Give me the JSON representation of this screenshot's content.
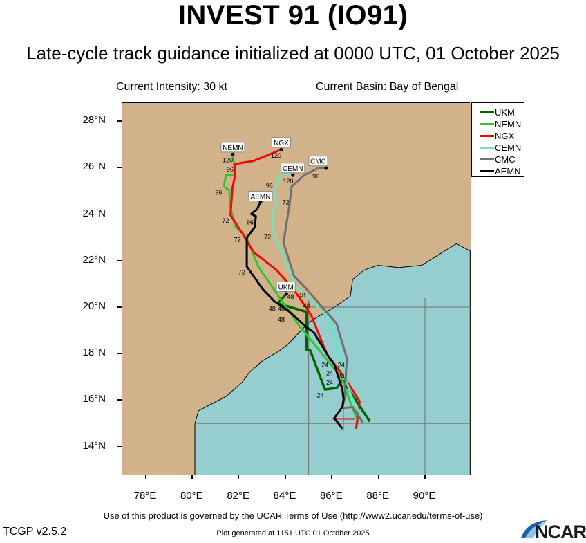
{
  "header": {
    "title": "INVEST 91 (IO91)",
    "subtitle": "Late-cycle track guidance initialized at 0000 UTC, 01 October 2025",
    "intensity": "Current Intensity: 30 kt",
    "basin": "Current Basin: Bay of Bengal"
  },
  "footer": {
    "terms": "Use of this product is governed by the UCAR Terms of Use (http://www2.ucar.edu/terms-of-use)",
    "version": "TCGP v2.5.2",
    "generated": "Plot generated at 1151 UTC   01 October 2025",
    "logo_text": "NCAR"
  },
  "colors": {
    "land": "#d1b28a",
    "ocean": "#96cdcf",
    "grid": "#6e6e6e",
    "initial_position": "#ff0000"
  },
  "chart_data": {
    "type": "map-track",
    "lon_range": [
      76.99,
      91.96
    ],
    "lat_range": [
      12.77,
      28.78
    ],
    "x_ticks": [
      {
        "v": 78,
        "label": "78°E"
      },
      {
        "v": 80,
        "label": "80°E"
      },
      {
        "v": 82,
        "label": "82°E"
      },
      {
        "v": 84,
        "label": "84°E"
      },
      {
        "v": 86,
        "label": "86°E"
      },
      {
        "v": 88,
        "label": "88°E"
      },
      {
        "v": 90,
        "label": "90°E"
      }
    ],
    "y_ticks": [
      {
        "v": 14,
        "label": "14°N"
      },
      {
        "v": 16,
        "label": "16°N"
      },
      {
        "v": 18,
        "label": "18°N"
      },
      {
        "v": 20,
        "label": "20°N"
      },
      {
        "v": 22,
        "label": "22°N"
      },
      {
        "v": 24,
        "label": "24°N"
      },
      {
        "v": 26,
        "label": "26°N"
      },
      {
        "v": 28,
        "label": "28°N"
      }
    ],
    "grid_lon": [
      85,
      90
    ],
    "grid_lat": [
      15,
      20
    ],
    "initial_position": {
      "lon": 86.49,
      "lat": 15.18
    },
    "legend_placement": "right",
    "ocean_polygon": [
      [
        80.11,
        12.69
      ],
      [
        80.11,
        14.98
      ],
      [
        80.26,
        15.54
      ],
      [
        80.85,
        15.85
      ],
      [
        81.45,
        16.16
      ],
      [
        82.14,
        16.77
      ],
      [
        82.44,
        17.18
      ],
      [
        83.03,
        17.7
      ],
      [
        83.72,
        18.11
      ],
      [
        84.12,
        18.41
      ],
      [
        84.61,
        18.93
      ],
      [
        85.01,
        19.34
      ],
      [
        85.5,
        19.65
      ],
      [
        86.2,
        20.06
      ],
      [
        86.79,
        20.47
      ],
      [
        86.89,
        21.19
      ],
      [
        87.39,
        21.6
      ],
      [
        87.98,
        21.8
      ],
      [
        88.87,
        21.7
      ],
      [
        89.86,
        21.8
      ],
      [
        90.85,
        22.42
      ],
      [
        91.35,
        22.73
      ],
      [
        91.94,
        22.42
      ],
      [
        91.94,
        12.69
      ]
    ],
    "series": [
      {
        "name": "UKM",
        "color": "#006400",
        "label_at": [
          84.02,
          20.88
        ],
        "track": [
          [
            87.63,
            15.08
          ],
          [
            86.45,
            16.87
          ],
          [
            86.2,
            16.52
          ],
          [
            85.7,
            16.46
          ],
          [
            85.06,
            18.16
          ],
          [
            84.91,
            18.16
          ],
          [
            84.91,
            19.8
          ],
          [
            83.67,
            20.16
          ],
          [
            84.04,
            20.57
          ]
        ]
      },
      {
        "name": "NEMN",
        "color": "#33c433",
        "label_at": [
          81.74,
          26.88
        ],
        "track": [
          [
            87.14,
            15.05
          ],
          [
            86.79,
            15.9
          ],
          [
            86.4,
            16.98
          ],
          [
            85.11,
            18.57
          ],
          [
            84.61,
            19.18
          ],
          [
            83.92,
            20.16
          ],
          [
            82.83,
            21.75
          ],
          [
            82.34,
            22.98
          ],
          [
            81.84,
            23.49
          ],
          [
            81.64,
            24.26
          ],
          [
            81.59,
            25.03
          ],
          [
            81.35,
            25.19
          ],
          [
            81.45,
            25.7
          ],
          [
            81.84,
            25.7
          ],
          [
            81.74,
            26.57
          ]
        ]
      },
      {
        "name": "NGX",
        "color": "#ff0000",
        "label_at": [
          83.82,
          27.09
        ],
        "track": [
          [
            87.04,
            14.77
          ],
          [
            87.19,
            15.95
          ],
          [
            86.54,
            16.98
          ],
          [
            85.8,
            17.95
          ],
          [
            85.5,
            18.67
          ],
          [
            85.11,
            19.65
          ],
          [
            84.42,
            20.67
          ],
          [
            83.62,
            21.6
          ],
          [
            82.63,
            22.37
          ],
          [
            82.14,
            23.19
          ],
          [
            81.64,
            23.96
          ],
          [
            81.72,
            25.09
          ],
          [
            81.84,
            25.7
          ],
          [
            81.84,
            26.16
          ],
          [
            82.63,
            26.29
          ],
          [
            83.82,
            26.78
          ]
        ]
      },
      {
        "name": "CEMN",
        "color": "#66e6c4",
        "label_at": [
          84.32,
          25.99
        ],
        "track": [
          [
            87.29,
            15.23
          ],
          [
            86.84,
            16.16
          ],
          [
            86.54,
            17.08
          ],
          [
            86.0,
            19.08
          ],
          [
            85.6,
            19.8
          ],
          [
            84.42,
            20.93
          ],
          [
            84.12,
            21.7
          ],
          [
            83.43,
            23.29
          ],
          [
            83.48,
            24.11
          ],
          [
            83.62,
            24.37
          ],
          [
            83.52,
            25.09
          ],
          [
            83.82,
            25.77
          ],
          [
            84.32,
            25.68
          ]
        ]
      },
      {
        "name": "CMC",
        "color": "#707070",
        "label_at": [
          85.41,
          26.29
        ],
        "track": [
          [
            87.34,
            15.03
          ],
          [
            86.89,
            15.7
          ],
          [
            86.45,
            15.66
          ],
          [
            86.54,
            16.05
          ],
          [
            86.61,
            17.29
          ],
          [
            86.64,
            17.8
          ],
          [
            86.2,
            19.29
          ],
          [
            85.8,
            19.75
          ],
          [
            84.91,
            20.78
          ],
          [
            84.37,
            21.34
          ],
          [
            83.92,
            22.78
          ],
          [
            84.17,
            24.37
          ],
          [
            84.27,
            25.19
          ],
          [
            84.81,
            25.68
          ],
          [
            85.41,
            25.98
          ],
          [
            85.75,
            25.98
          ]
        ]
      },
      {
        "name": "AEMN",
        "color": "#000000",
        "label_at": [
          82.93,
          24.78
        ],
        "track": [
          [
            86.45,
            14.77
          ],
          [
            86.1,
            15.23
          ],
          [
            86.45,
            15.7
          ],
          [
            86.5,
            16.05
          ],
          [
            86.45,
            16.46
          ],
          [
            86.1,
            17.54
          ],
          [
            85.9,
            17.8
          ],
          [
            85.21,
            18.93
          ],
          [
            84.91,
            19.13
          ],
          [
            84.12,
            19.85
          ],
          [
            83.52,
            20.26
          ],
          [
            83.03,
            20.77
          ],
          [
            82.34,
            21.75
          ],
          [
            82.34,
            22.98
          ],
          [
            82.68,
            23.44
          ],
          [
            82.73,
            23.91
          ],
          [
            82.53,
            24.01
          ],
          [
            82.78,
            24.21
          ],
          [
            82.93,
            24.52
          ]
        ]
      }
    ],
    "hour_labels": [
      {
        "text": "120",
        "lon": 81.52,
        "lat": 26.35
      },
      {
        "text": "96",
        "lon": 81.62,
        "lat": 25.96
      },
      {
        "text": "120",
        "lon": 83.6,
        "lat": 26.55
      },
      {
        "text": "120",
        "lon": 84.12,
        "lat": 25.44
      },
      {
        "text": "96",
        "lon": 85.31,
        "lat": 25.65
      },
      {
        "text": "96",
        "lon": 81.13,
        "lat": 24.95
      },
      {
        "text": "96",
        "lon": 83.31,
        "lat": 24.86
      },
      {
        "text": "72",
        "lon": 84.02,
        "lat": 24.54
      },
      {
        "text": "96",
        "lon": 82.48,
        "lat": 23.67
      },
      {
        "text": "72",
        "lon": 81.43,
        "lat": 23.75
      },
      {
        "text": "72",
        "lon": 81.94,
        "lat": 22.93
      },
      {
        "text": "72",
        "lon": 83.23,
        "lat": 23.05
      },
      {
        "text": "72",
        "lon": 82.12,
        "lat": 21.54
      },
      {
        "text": "48",
        "lon": 84.22,
        "lat": 20.47
      },
      {
        "text": "48",
        "lon": 84.71,
        "lat": 20.54
      },
      {
        "text": "48",
        "lon": 84.91,
        "lat": 20.24
      },
      {
        "text": "48",
        "lon": 83.43,
        "lat": 19.95
      },
      {
        "text": "48",
        "lon": 83.82,
        "lat": 19.95
      },
      {
        "text": "48",
        "lon": 83.82,
        "lat": 19.65
      },
      {
        "text": "24",
        "lon": 85.7,
        "lat": 17.54
      },
      {
        "text": "24",
        "lon": 86.4,
        "lat": 17.54
      },
      {
        "text": "24",
        "lon": 85.9,
        "lat": 17.34
      },
      {
        "text": "24",
        "lon": 85.9,
        "lat": 17.05
      },
      {
        "text": "24",
        "lon": 86.4,
        "lat": 17.05
      },
      {
        "text": "24",
        "lon": 85.5,
        "lat": 16.24
      }
    ]
  }
}
